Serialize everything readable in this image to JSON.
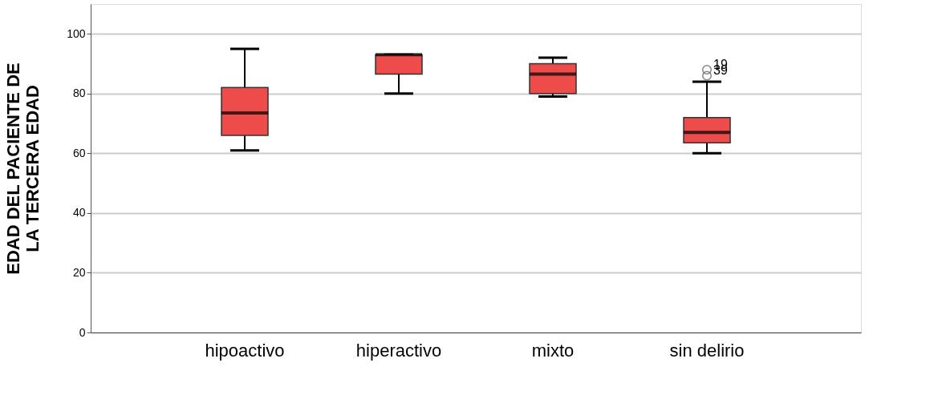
{
  "chart_data": {
    "type": "box",
    "ylabel": "EDAD DEL PACIENTE DE LA TERCERA EDAD",
    "categories": [
      "hipoactivo",
      "hiperactivo",
      "mixto",
      "sin delirio"
    ],
    "series": [
      {
        "color": "#ee4b4b",
        "boxes": [
          {
            "low": 61,
            "q1": 66,
            "median": 73.5,
            "q3": 82,
            "high": 95
          },
          {
            "low": 80,
            "q1": 86.5,
            "median": 93,
            "q3": 93,
            "high": 93
          },
          {
            "low": 79,
            "q1": 80,
            "median": 86.5,
            "q3": 90,
            "high": 92
          },
          {
            "low": 60,
            "q1": 63.5,
            "median": 67,
            "q3": 72,
            "high": 84,
            "outliers": [
              88,
              86
            ]
          }
        ]
      }
    ],
    "ylim": [
      0,
      110
    ],
    "yticks": [
      0,
      20,
      40,
      60,
      80,
      100
    ],
    "grid": "y",
    "annotations": [
      "19",
      "39"
    ]
  }
}
